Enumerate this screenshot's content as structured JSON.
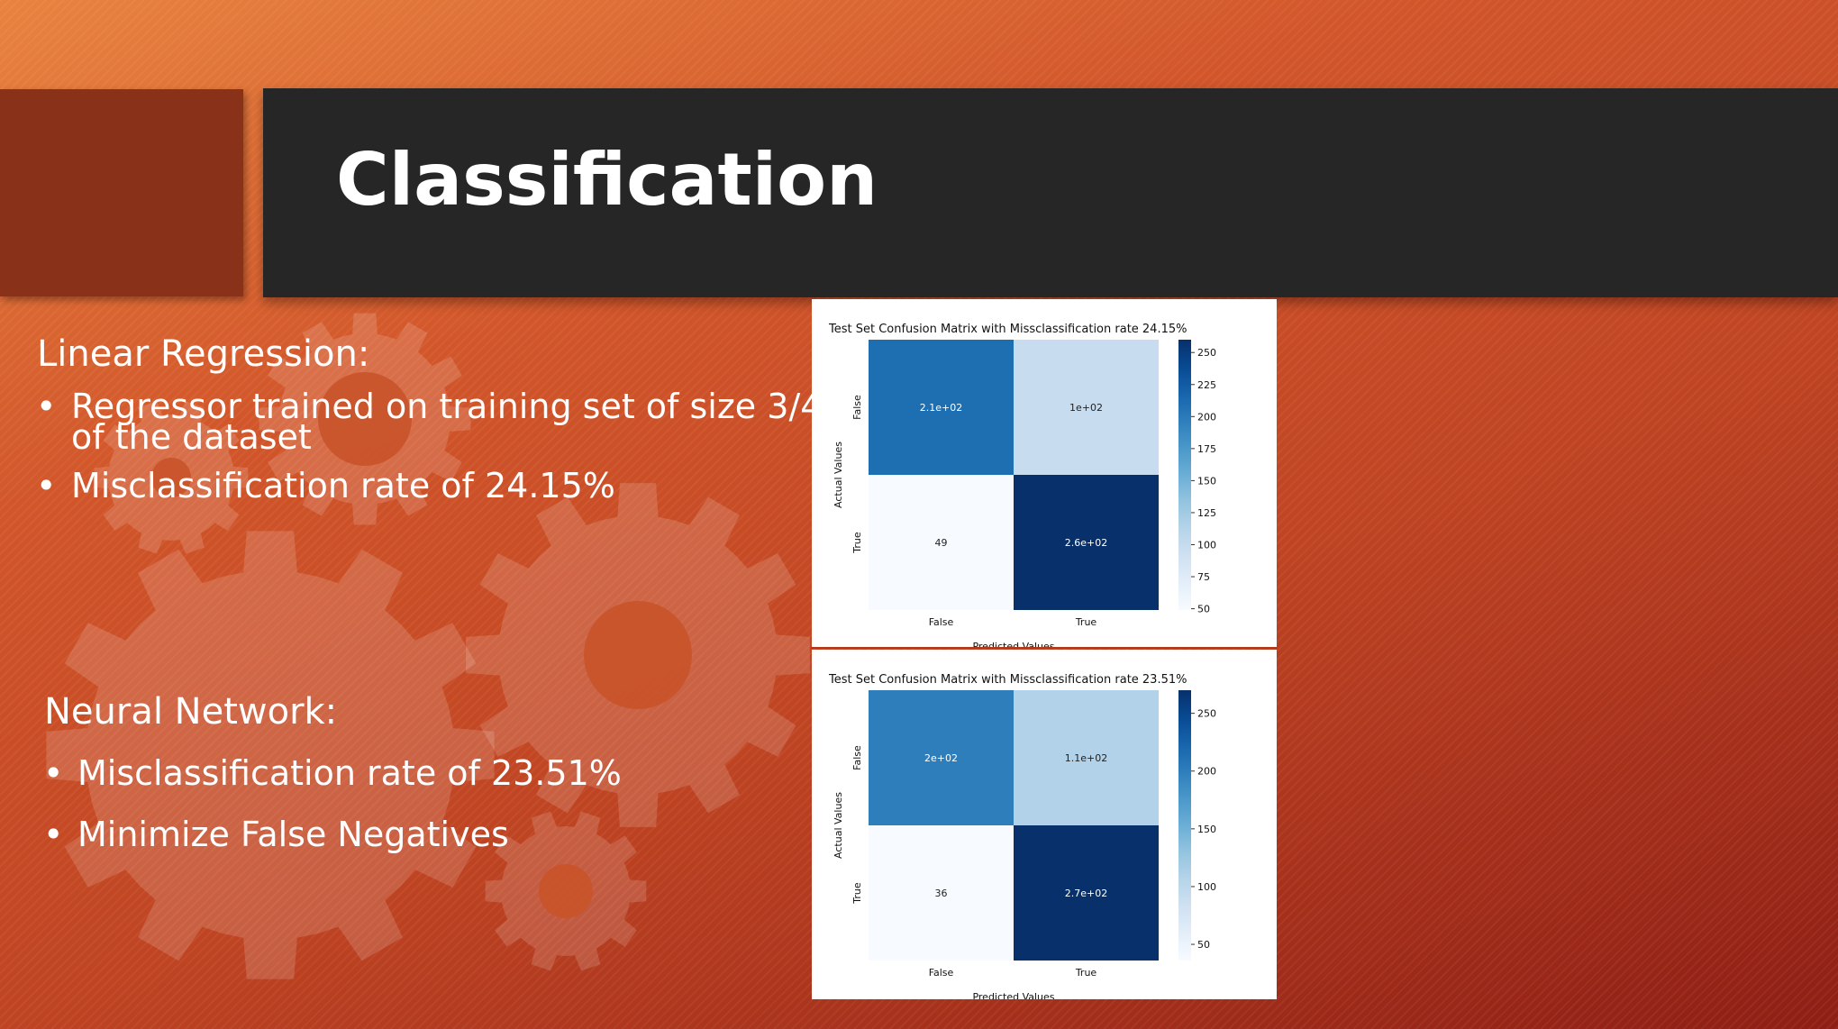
{
  "slide": {
    "title": "Classification",
    "colors": {
      "background_start": "#e8833f",
      "background_end": "#8e1e14",
      "title_bar": "#262626",
      "accent_block": "#8a3219",
      "text": "#ffffff"
    }
  },
  "sections": {
    "linear": {
      "heading": "Linear Regression:",
      "bullets": [
        {
          "line1": "Regressor trained on training set of size 3/4",
          "line2": "of the dataset"
        },
        {
          "line1": "Misclassification rate of 24.15%"
        }
      ]
    },
    "neural": {
      "heading": "Neural Network:",
      "bullets": [
        {
          "line1": "Misclassification rate of 23.51%"
        },
        {
          "line1": "Minimize False Negatives"
        }
      ]
    }
  },
  "chart_data": [
    {
      "type": "heatmap",
      "title": "Test Set Confusion Matrix with Missclassification rate 24.15%",
      "xlabel": "Predicted Values",
      "ylabel": "Actual Values",
      "x_categories": [
        "False",
        "True"
      ],
      "y_categories": [
        "False",
        "True"
      ],
      "values": [
        [
          210,
          100
        ],
        [
          49,
          260
        ]
      ],
      "annotations": [
        [
          "2.1e+02",
          "1e+02"
        ],
        [
          "49",
          "2.6e+02"
        ]
      ],
      "colorbar": {
        "min": 49,
        "max": 260,
        "ticks": [
          50,
          75,
          100,
          125,
          150,
          175,
          200,
          225,
          250
        ]
      },
      "colormap": "Blues"
    },
    {
      "type": "heatmap",
      "title": "Test Set Confusion Matrix with Missclassification rate 23.51%",
      "xlabel": "Predicted Values",
      "ylabel": "Actual Values",
      "x_categories": [
        "False",
        "True"
      ],
      "y_categories": [
        "False",
        "True"
      ],
      "values": [
        [
          200,
          110
        ],
        [
          36,
          270
        ]
      ],
      "annotations": [
        [
          "2e+02",
          "1.1e+02"
        ],
        [
          "36",
          "2.7e+02"
        ]
      ],
      "colorbar": {
        "min": 36,
        "max": 270,
        "ticks": [
          50,
          100,
          150,
          200,
          250
        ]
      },
      "colormap": "Blues"
    }
  ]
}
